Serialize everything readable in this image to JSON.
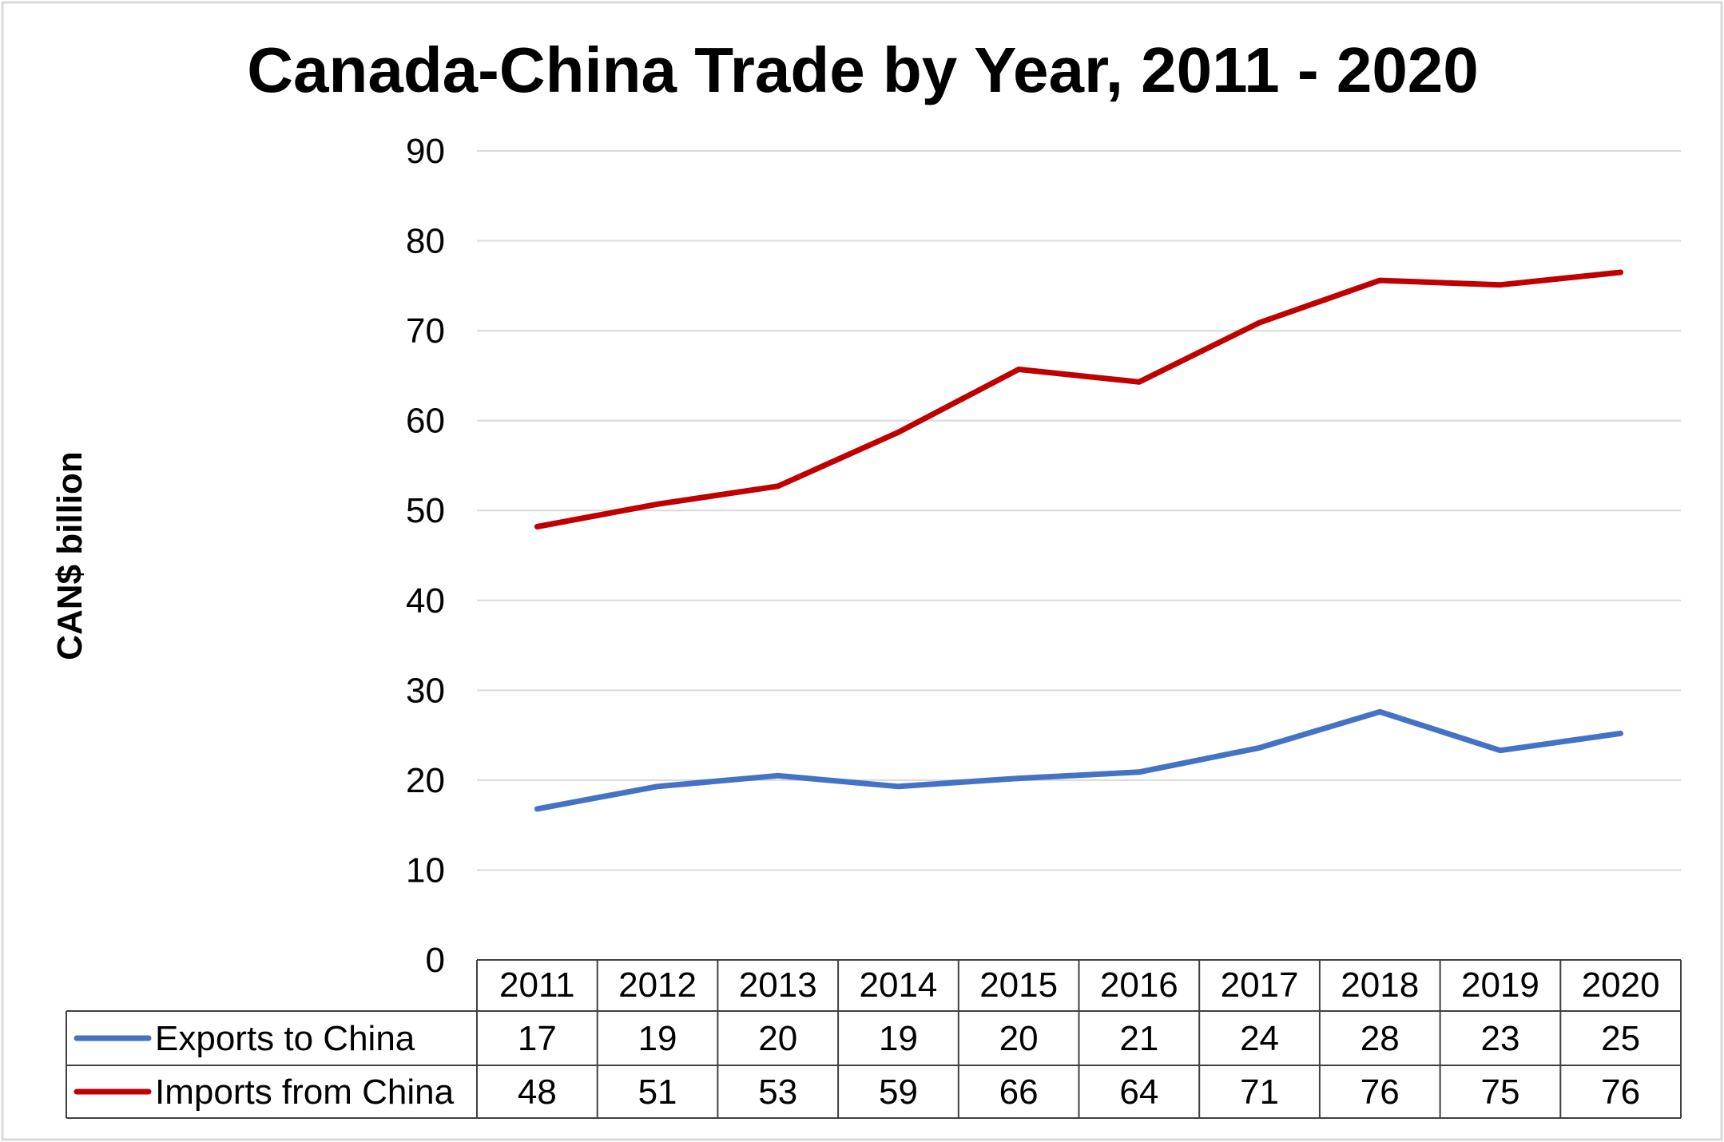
{
  "chart_data": {
    "type": "line",
    "title": "Canada-China Trade by Year, 2011 - 2020",
    "xlabel": "",
    "ylabel": "CAN$ billion",
    "ylim": [
      0,
      90
    ],
    "y_ticks": [
      0,
      10,
      20,
      30,
      40,
      50,
      60,
      70,
      80,
      90
    ],
    "grid": true,
    "legend": "data-table",
    "categories": [
      "2011",
      "2012",
      "2013",
      "2014",
      "2015",
      "2016",
      "2017",
      "2018",
      "2019",
      "2020"
    ],
    "series": [
      {
        "name": "Exports to China",
        "color": "#4472C4",
        "values": [
          16.8,
          19.3,
          20.5,
          19.3,
          20.2,
          20.9,
          23.6,
          27.6,
          23.3,
          25.2
        ],
        "table_labels": [
          "17",
          "19",
          "20",
          "19",
          "20",
          "21",
          "24",
          "28",
          "23",
          "25"
        ]
      },
      {
        "name": "Imports from China",
        "color": "#C00000",
        "values": [
          48.2,
          50.7,
          52.7,
          58.7,
          65.7,
          64.3,
          70.9,
          75.6,
          75.1,
          76.5
        ],
        "table_labels": [
          "48",
          "51",
          "53",
          "59",
          "66",
          "64",
          "71",
          "76",
          "75",
          "76"
        ]
      }
    ]
  }
}
